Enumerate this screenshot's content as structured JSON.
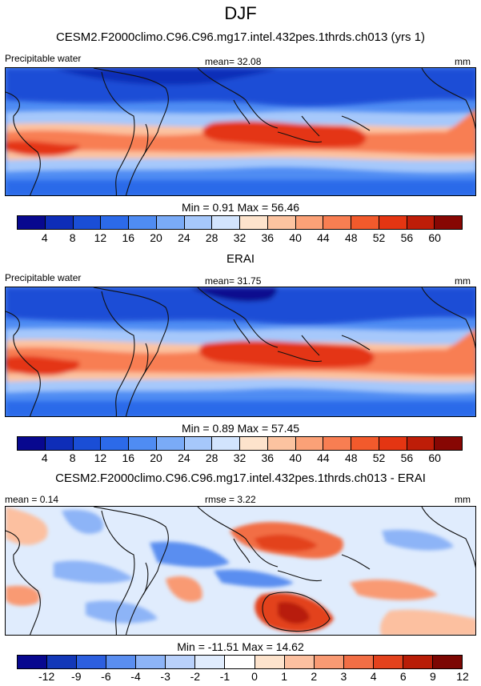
{
  "page": {
    "title": "DJF"
  },
  "panels": [
    {
      "title": "CESM2.F2000climo.C96.C96.mg17.intel.432pes.1thrds.ch013 (yrs 1)",
      "left_label": "Precipitable water",
      "center_label": "mean=  32.08",
      "units": "mm",
      "minmax": "Min =   0.91 Max =  56.46",
      "colorbar": {
        "colors": [
          "#08088f",
          "#0e2db8",
          "#1a4ed6",
          "#2c6ae9",
          "#4f8cf3",
          "#7aabf7",
          "#a6c8fb",
          "#d2e4fd",
          "#fde3cc",
          "#fcc3a0",
          "#fba177",
          "#f87e52",
          "#f25a2c",
          "#e43512",
          "#be1d08",
          "#870703"
        ],
        "ticks": [
          "4",
          "8",
          "12",
          "16",
          "20",
          "24",
          "28",
          "32",
          "36",
          "40",
          "44",
          "48",
          "52",
          "56",
          "60"
        ]
      }
    },
    {
      "title": "ERAI",
      "left_label": "Precipitable water",
      "center_label": "mean=  31.75",
      "units": "mm",
      "minmax": "Min =   0.89 Max =  57.45",
      "colorbar": {
        "colors": [
          "#08088f",
          "#0e2db8",
          "#1a4ed6",
          "#2c6ae9",
          "#4f8cf3",
          "#7aabf7",
          "#a6c8fb",
          "#d2e4fd",
          "#fde3cc",
          "#fcc3a0",
          "#fba177",
          "#f87e52",
          "#f25a2c",
          "#e43512",
          "#be1d08",
          "#870703"
        ],
        "ticks": [
          "4",
          "8",
          "12",
          "16",
          "20",
          "24",
          "28",
          "32",
          "36",
          "40",
          "44",
          "48",
          "52",
          "56",
          "60"
        ]
      }
    },
    {
      "title": "CESM2.F2000climo.C96.C96.mg17.intel.432pes.1thrds.ch013 - ERAI",
      "left_label": "mean =   0.14",
      "center_label": "rmse =   3.22",
      "units": "mm",
      "minmax": "Min = -11.51 Max =  14.62",
      "colorbar": {
        "colors": [
          "#08088f",
          "#1338b8",
          "#2c5fdf",
          "#5a8ef0",
          "#8db4f7",
          "#b9d1fb",
          "#e0ecfd",
          "#ffffff",
          "#fde3cc",
          "#fcc0a0",
          "#f99a73",
          "#f26e45",
          "#e3421d",
          "#b81d07",
          "#7c0703"
        ],
        "ticks": [
          "-12",
          "-9",
          "-6",
          "-4",
          "-3",
          "-2",
          "-1",
          "0",
          "1",
          "2",
          "3",
          "4",
          "6",
          "9",
          "12"
        ]
      }
    }
  ]
}
